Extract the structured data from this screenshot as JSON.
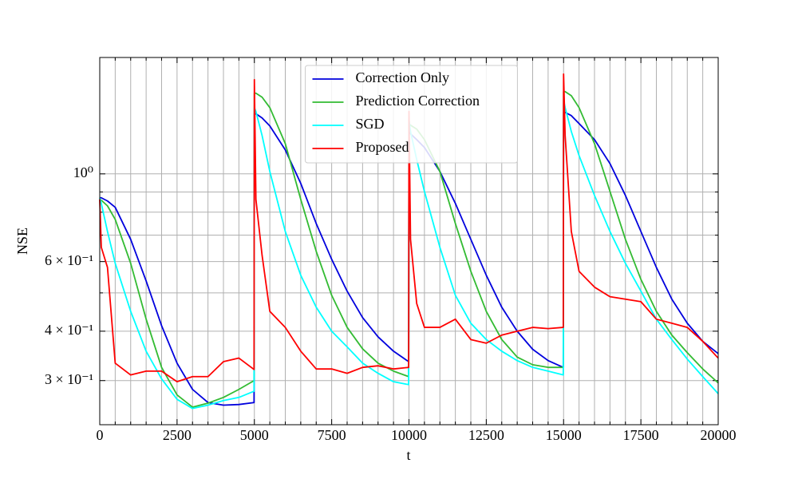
{
  "chart_data": {
    "type": "line",
    "xlabel": "t",
    "ylabel": "NSE",
    "x": [
      0,
      50,
      250,
      500,
      1000,
      1500,
      2000,
      2500,
      3000,
      3500,
      4000,
      4500,
      4990,
      5000,
      5050,
      5250,
      5500,
      6000,
      6500,
      7000,
      7500,
      8000,
      8500,
      9000,
      9500,
      9990,
      10000,
      10050,
      10250,
      10500,
      11000,
      11500,
      12000,
      12500,
      13000,
      13500,
      14000,
      14500,
      14990,
      15000,
      15050,
      15250,
      15500,
      16000,
      16500,
      17000,
      17500,
      18000,
      18500,
      19000,
      19500,
      20000
    ],
    "series": [
      {
        "name": "Correction Only",
        "color": "#0000dd",
        "values": [
          0.87,
          0.87,
          0.854,
          0.823,
          0.683,
          0.536,
          0.413,
          0.332,
          0.285,
          0.264,
          0.26,
          0.261,
          0.264,
          1.419,
          1.419,
          1.385,
          1.322,
          1.15,
          0.946,
          0.749,
          0.608,
          0.505,
          0.433,
          0.387,
          0.356,
          0.335,
          1.28,
          1.263,
          1.221,
          1.166,
          1.014,
          0.842,
          0.683,
          0.554,
          0.46,
          0.4,
          0.36,
          0.337,
          0.324,
          1.431,
          1.431,
          1.404,
          1.341,
          1.221,
          1.062,
          0.882,
          0.715,
          0.58,
          0.482,
          0.419,
          0.377,
          0.351
        ]
      },
      {
        "name": "Prediction Correction",
        "color": "#33bb33",
        "values": [
          0.862,
          0.858,
          0.83,
          0.767,
          0.594,
          0.429,
          0.324,
          0.276,
          0.257,
          0.263,
          0.272,
          0.285,
          0.3,
          1.6,
          1.6,
          1.563,
          1.471,
          1.193,
          0.862,
          0.637,
          0.493,
          0.409,
          0.361,
          0.332,
          0.317,
          0.307,
          1.341,
          1.328,
          1.298,
          1.221,
          1.014,
          0.749,
          0.567,
          0.449,
          0.381,
          0.344,
          0.329,
          0.324,
          0.324,
          1.615,
          1.615,
          1.577,
          1.471,
          1.193,
          0.903,
          0.683,
          0.541,
          0.449,
          0.391,
          0.353,
          0.321,
          0.296
        ]
      },
      {
        "name": "SGD",
        "color": "#00ffff",
        "values": [
          0.87,
          0.842,
          0.715,
          0.594,
          0.449,
          0.356,
          0.303,
          0.269,
          0.255,
          0.26,
          0.267,
          0.272,
          0.282,
          1.471,
          1.438,
          1.25,
          1.014,
          0.715,
          0.554,
          0.46,
          0.4,
          0.365,
          0.332,
          0.313,
          0.298,
          0.293,
          1.372,
          1.28,
          1.087,
          0.903,
          0.652,
          0.493,
          0.419,
          0.381,
          0.356,
          0.337,
          0.324,
          0.317,
          0.31,
          1.541,
          1.471,
          1.28,
          1.113,
          0.882,
          0.715,
          0.594,
          0.505,
          0.429,
          0.381,
          0.34,
          0.307,
          0.278
        ]
      },
      {
        "name": "Proposed",
        "color": "#ff0000",
        "values": [
          0.862,
          0.652,
          0.58,
          0.332,
          0.31,
          0.317,
          0.317,
          0.298,
          0.307,
          0.307,
          0.335,
          0.342,
          0.32,
          1.731,
          0.862,
          0.622,
          0.449,
          0.409,
          0.356,
          0.321,
          0.321,
          0.313,
          0.324,
          0.327,
          0.321,
          0.324,
          1.438,
          0.683,
          0.47,
          0.409,
          0.409,
          0.429,
          0.381,
          0.373,
          0.391,
          0.4,
          0.409,
          0.406,
          0.409,
          1.789,
          1.25,
          0.715,
          0.567,
          0.517,
          0.489,
          0.482,
          0.475,
          0.429,
          0.419,
          0.409,
          0.377,
          0.342
        ]
      }
    ],
    "xlim": [
      0,
      20000
    ],
    "xticks": [
      0,
      2500,
      5000,
      7500,
      10000,
      12500,
      15000,
      17500,
      20000
    ],
    "xticks_minor": [
      500,
      1000,
      1500,
      2000,
      3000,
      3500,
      4000,
      4500,
      5500,
      6000,
      6500,
      7000,
      8000,
      8500,
      9000,
      9500,
      10500,
      11000,
      11500,
      12000,
      13000,
      13500,
      14000,
      14500,
      15500,
      16000,
      16500,
      17000,
      18000,
      18500,
      19000,
      19500
    ],
    "ylim": [
      0.232,
      1.97
    ],
    "yscale": "log",
    "yticks": [
      {
        "value": 0.3,
        "label": "3 × 10⁻¹"
      },
      {
        "value": 0.4,
        "label": "4 × 10⁻¹"
      },
      {
        "value": 0.6,
        "label": "6 × 10⁻¹"
      },
      {
        "value": 1,
        "label": "10⁰"
      }
    ],
    "yticks_minor": [
      0.5,
      0.7,
      0.8,
      0.9
    ],
    "grid": true,
    "legend": "upper center"
  }
}
